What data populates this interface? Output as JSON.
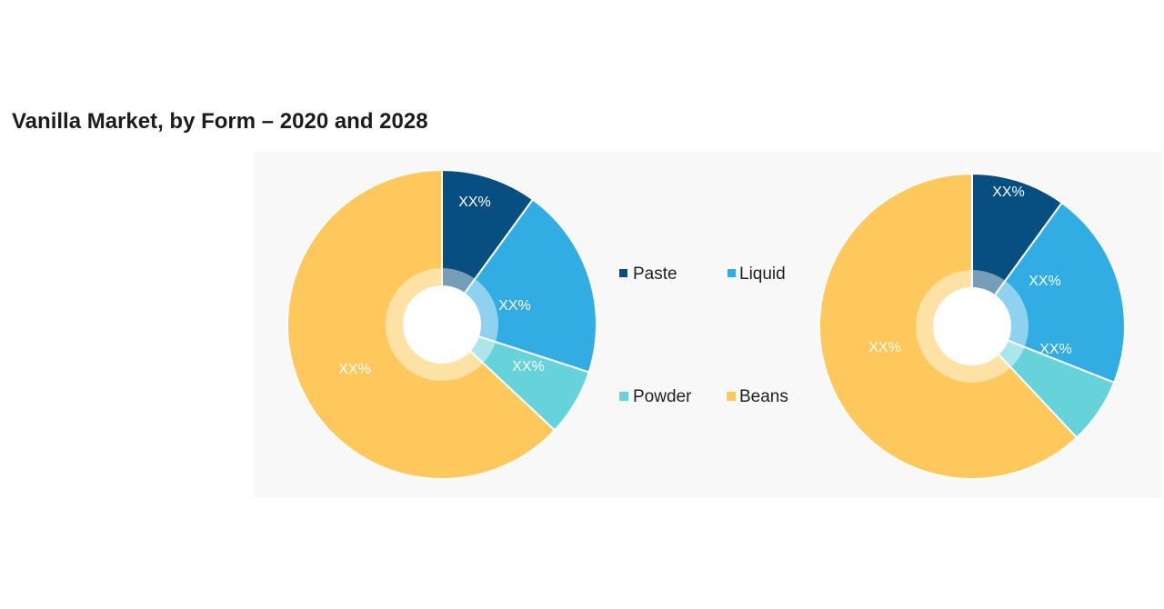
{
  "page": {
    "title": "Vanilla Market, by Form – 2020 and 2028"
  },
  "colors": {
    "Paste": "#074f80",
    "Liquid": "#32ade3",
    "Powder": "#66d2da",
    "Beans": "#fec85c",
    "panel": "#f8f8f8"
  },
  "chart_data": [
    {
      "type": "pie",
      "title": "",
      "categories": [
        "Paste",
        "Liquid",
        "Powder",
        "Beans"
      ],
      "values": [
        10,
        20,
        7,
        63
      ],
      "data_labels": [
        "XX%",
        "XX%",
        "XX%",
        "XX%"
      ],
      "legend": [
        "Paste",
        "Liquid",
        "Powder",
        "Beans"
      ],
      "legend_position": "center"
    },
    {
      "type": "pie",
      "title": "",
      "categories": [
        "Paste",
        "Liquid",
        "Powder",
        "Beans"
      ],
      "values": [
        10,
        21,
        7,
        62
      ],
      "data_labels": [
        "XX%",
        "XX%",
        "XX%",
        "XX%"
      ]
    }
  ]
}
